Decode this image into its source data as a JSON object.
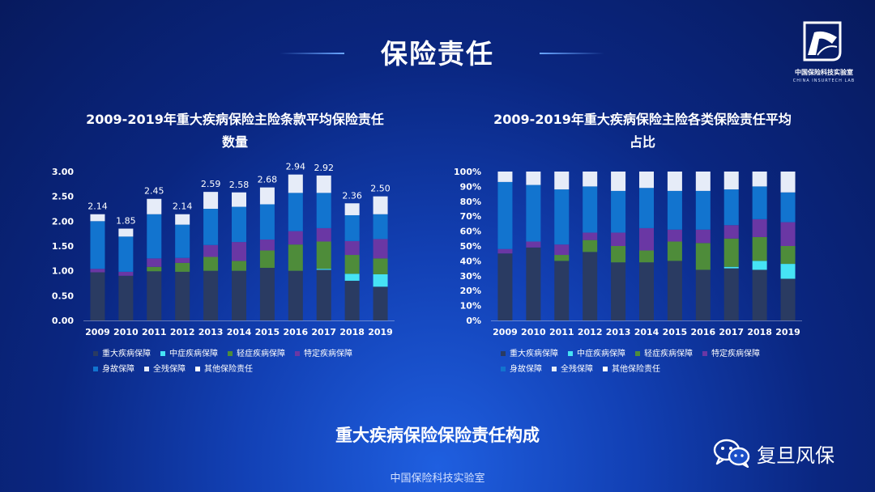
{
  "header": {
    "title": "保险责任"
  },
  "logo": {
    "name_cn": "中国保险科技实验室",
    "name_en": "CHINA INSURTECH LAB",
    "icon": "insurtech-lab-logo-icon"
  },
  "caption": "重大疾病保险保险责任构成",
  "footer": {
    "text": "中国保险科技实验室"
  },
  "watermark": {
    "text": "复旦风保",
    "icon": "wechat-icon"
  },
  "colors": {
    "重大疾病保障": "#2a3b62",
    "中症疾病保障": "#46e3f5",
    "轻症疾病保障": "#4e8c3a",
    "特定疾病保障": "#6a37a4",
    "身故保障": "#1274cf",
    "全残保障": "#e6ecf8",
    "其他保险责任": "#ffffff"
  },
  "chart_data": [
    {
      "type": "bar",
      "stacked": true,
      "title": "2009-2019年重大疾病保险主险条款平均保险责任数量",
      "categories": [
        "2009",
        "2010",
        "2011",
        "2012",
        "2013",
        "2014",
        "2015",
        "2016",
        "2017",
        "2018",
        "2019"
      ],
      "y_ticks": [
        "0.00",
        "0.50",
        "1.00",
        "1.50",
        "2.00",
        "2.50",
        "3.00"
      ],
      "ylim": [
        0,
        3
      ],
      "grid": false,
      "legend_position": "bottom",
      "totals": [
        "2.14",
        "1.85",
        "2.45",
        "2.14",
        "2.59",
        "2.58",
        "2.68",
        "2.94",
        "2.92",
        "2.36",
        "2.50"
      ],
      "series": [
        {
          "name": "重大疾病保障",
          "values": [
            0.97,
            0.9,
            0.99,
            0.98,
            1.0,
            1.0,
            1.06,
            1.0,
            1.02,
            0.8,
            0.68
          ]
        },
        {
          "name": "中症疾病保障",
          "values": [
            0,
            0,
            0,
            0,
            0,
            0,
            0,
            0,
            0.02,
            0.14,
            0.25
          ]
        },
        {
          "name": "轻症疾病保障",
          "values": [
            0,
            0,
            0.09,
            0.18,
            0.28,
            0.2,
            0.35,
            0.53,
            0.55,
            0.38,
            0.32
          ]
        },
        {
          "name": "特定疾病保障",
          "values": [
            0.07,
            0.08,
            0.17,
            0.1,
            0.24,
            0.38,
            0.22,
            0.27,
            0.27,
            0.28,
            0.39
          ]
        },
        {
          "name": "身故保障",
          "values": [
            0.96,
            0.71,
            0.89,
            0.67,
            0.73,
            0.71,
            0.71,
            0.77,
            0.71,
            0.52,
            0.5
          ]
        },
        {
          "name": "全残保障",
          "values": [
            0.14,
            0.16,
            0.31,
            0.21,
            0.34,
            0.29,
            0.34,
            0.37,
            0.35,
            0.24,
            0.36
          ]
        },
        {
          "name": "其他保险责任",
          "values": [
            0,
            0,
            0,
            0,
            0,
            0,
            0,
            0,
            0,
            0,
            0
          ]
        }
      ]
    },
    {
      "type": "bar",
      "stacked": true,
      "percent": true,
      "title": "2009-2019年重大疾病保险主险各类保险责任平均占比",
      "categories": [
        "2009",
        "2010",
        "2011",
        "2012",
        "2013",
        "2014",
        "2015",
        "2016",
        "2017",
        "2018",
        "2019"
      ],
      "y_ticks": [
        "0%",
        "10%",
        "20%",
        "30%",
        "40%",
        "50%",
        "60%",
        "70%",
        "80%",
        "90%",
        "100%"
      ],
      "ylim": [
        0,
        100
      ],
      "grid": false,
      "legend_position": "bottom",
      "series": [
        {
          "name": "重大疾病保障",
          "values": [
            45,
            49,
            40,
            46,
            39,
            39,
            40,
            34,
            35,
            34,
            28
          ]
        },
        {
          "name": "中症疾病保障",
          "values": [
            0,
            0,
            0,
            0,
            0,
            0,
            0,
            0,
            1,
            6,
            10
          ]
        },
        {
          "name": "轻症疾病保障",
          "values": [
            0,
            0,
            4,
            8,
            11,
            8,
            13,
            18,
            19,
            16,
            12
          ]
        },
        {
          "name": "特定疾病保障",
          "values": [
            3,
            4,
            7,
            5,
            9,
            15,
            8,
            9,
            9,
            12,
            16
          ]
        },
        {
          "name": "身故保障",
          "values": [
            45,
            38,
            37,
            31,
            28,
            27,
            26,
            26,
            24,
            22,
            20
          ]
        },
        {
          "name": "全残保障",
          "values": [
            7,
            9,
            12,
            10,
            13,
            11,
            13,
            13,
            12,
            10,
            14
          ]
        },
        {
          "name": "其他保险责任",
          "values": [
            0,
            0,
            0,
            0,
            0,
            0,
            0,
            0,
            0,
            0,
            0
          ]
        }
      ]
    }
  ]
}
